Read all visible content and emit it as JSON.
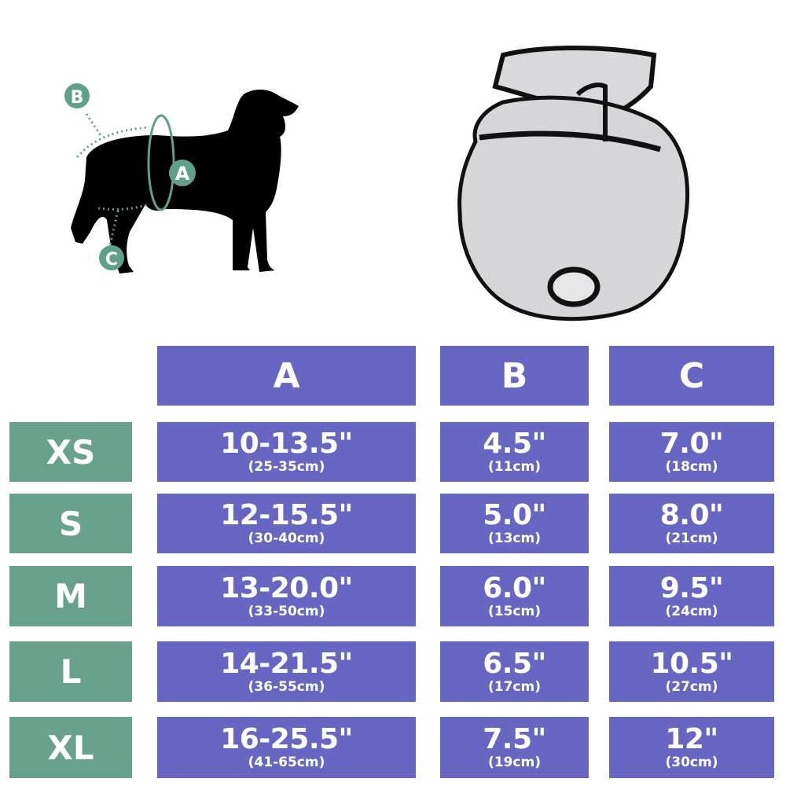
{
  "colors": {
    "header": "#6866c3",
    "size": "#69a28c",
    "accent": "#5fa08a"
  },
  "illustration": {
    "markers": [
      "A",
      "B",
      "C"
    ]
  },
  "table": {
    "columns": [
      "A",
      "B",
      "C"
    ],
    "rows": [
      {
        "size": "XS",
        "a": "10-13.5\"",
        "a_cm": "(25-35cm)",
        "b": "4.5\"",
        "b_cm": "(11cm)",
        "c": "7.0\"",
        "c_cm": "(18cm)"
      },
      {
        "size": "S",
        "a": "12-15.5\"",
        "a_cm": "(30-40cm)",
        "b": "5.0\"",
        "b_cm": "(13cm)",
        "c": "8.0\"",
        "c_cm": "(21cm)"
      },
      {
        "size": "M",
        "a": "13-20.0\"",
        "a_cm": "(33-50cm)",
        "b": "6.0\"",
        "b_cm": "(15cm)",
        "c": "9.5\"",
        "c_cm": "(24cm)"
      },
      {
        "size": "L",
        "a": "14-21.5\"",
        "a_cm": "(36-55cm)",
        "b": "6.5\"",
        "b_cm": "(17cm)",
        "c": "10.5\"",
        "c_cm": "(27cm)"
      },
      {
        "size": "XL",
        "a": "16-25.5\"",
        "a_cm": "(41-65cm)",
        "b": "7.5\"",
        "b_cm": "(19cm)",
        "c": "12\"",
        "c_cm": "(30cm)"
      }
    ]
  }
}
